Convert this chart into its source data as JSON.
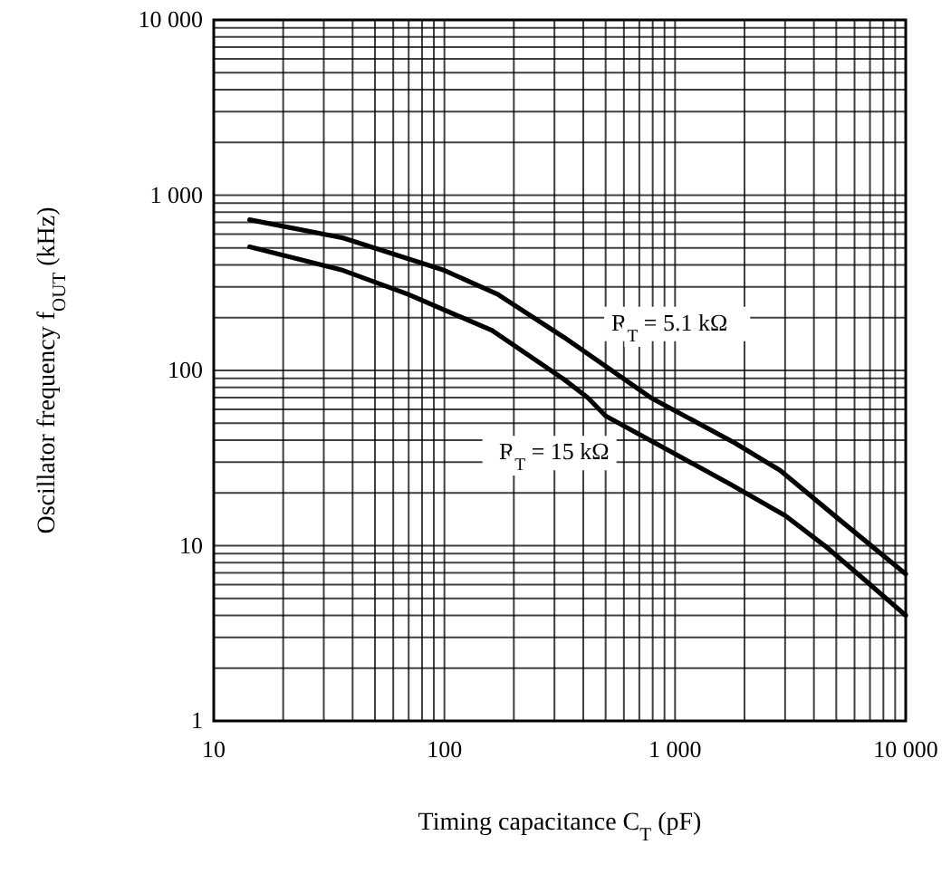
{
  "chart_data": {
    "type": "line",
    "xlabel": "Timing capacitance  C$_{T}$  (pF)",
    "ylabel": "Oscillator frequency  f$_{OUT}$  (kHz)",
    "log": "xy",
    "grid": true,
    "marker": "none",
    "line_style": "solid",
    "xlim": [
      10,
      10000
    ],
    "xticks": [
      10,
      100,
      {
        "value": 1000,
        "label": "1 000"
      },
      {
        "value": 10000,
        "label": "10 000"
      }
    ],
    "ylim": [
      1,
      10000
    ],
    "yticks": [
      1,
      10,
      100,
      {
        "value": 1000,
        "label": "1 000"
      },
      {
        "value": 10000,
        "label": "10 000"
      }
    ],
    "series": [
      {
        "name": "R$_{T}$ = 5.1 kΩ",
        "color": "#000000",
        "x": [
          14.3,
          36.4,
          100,
          170,
          331,
          783,
          1820,
          2850,
          5150,
          10000
        ],
        "values": [
          724,
          570,
          372,
          272,
          154,
          70,
          38.5,
          26.9,
          14.1,
          6.9
        ]
      },
      {
        "name": "R$_{T}$ = 15 kΩ",
        "color": "#000000",
        "x": [
          14.3,
          36.4,
          69.5,
          161,
          331,
          418,
          500,
          1760,
          3010,
          4630,
          6620,
          10000
        ],
        "values": [
          507,
          372,
          272,
          169,
          88.7,
          70,
          55,
          22.2,
          14.8,
          9.6,
          6.4,
          4.0
        ]
      }
    ]
  }
}
